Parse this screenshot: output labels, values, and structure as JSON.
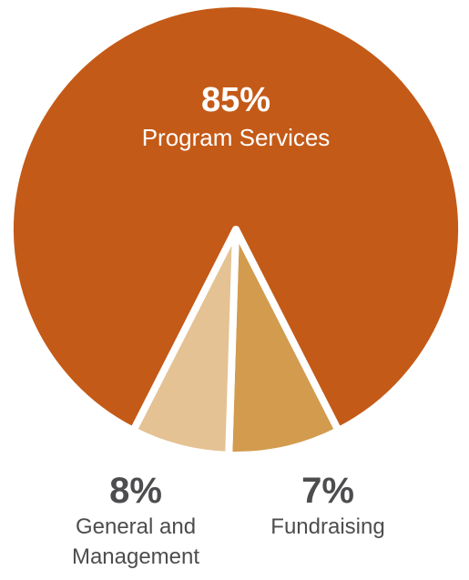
{
  "chart_data": {
    "type": "pie",
    "slices": [
      {
        "label_lines": [
          "Program Services"
        ],
        "percent_text": "85%",
        "value": 85,
        "color": "#C45A17",
        "text_color": "#ffffff"
      },
      {
        "label_lines": [
          "General and",
          "Management"
        ],
        "percent_text": "8%",
        "value": 8,
        "color": "#D29B4E",
        "text_color": "#4D4D4F"
      },
      {
        "label_lines": [
          "Fundraising"
        ],
        "percent_text": "7%",
        "value": 7,
        "color": "#E4C293",
        "text_color": "#4D4D4F"
      }
    ],
    "separator_color": "#ffffff"
  }
}
